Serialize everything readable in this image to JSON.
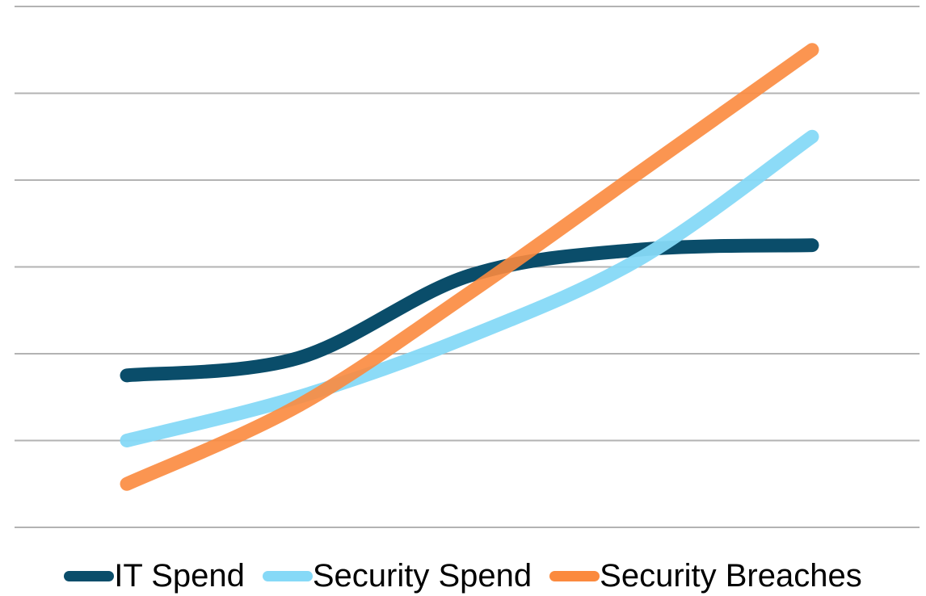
{
  "chart_data": {
    "type": "line",
    "title": "",
    "xlabel": "",
    "ylabel": "",
    "grid": true,
    "legend_position": "bottom",
    "x": [
      1,
      2,
      3,
      4,
      5
    ],
    "ylim": [
      0,
      6
    ],
    "series": [
      {
        "name": "IT Spend",
        "color": "#0a4d6a",
        "values": [
          1.75,
          1.95,
          2.9,
          3.2,
          3.25
        ]
      },
      {
        "name": "Security Spend",
        "color": "#86d9f7",
        "values": [
          1.0,
          1.5,
          2.2,
          3.1,
          4.5
        ]
      },
      {
        "name": "Security Breaches",
        "color": "#fb8a3e",
        "values": [
          0.5,
          1.4,
          2.7,
          4.1,
          5.5
        ]
      }
    ]
  }
}
